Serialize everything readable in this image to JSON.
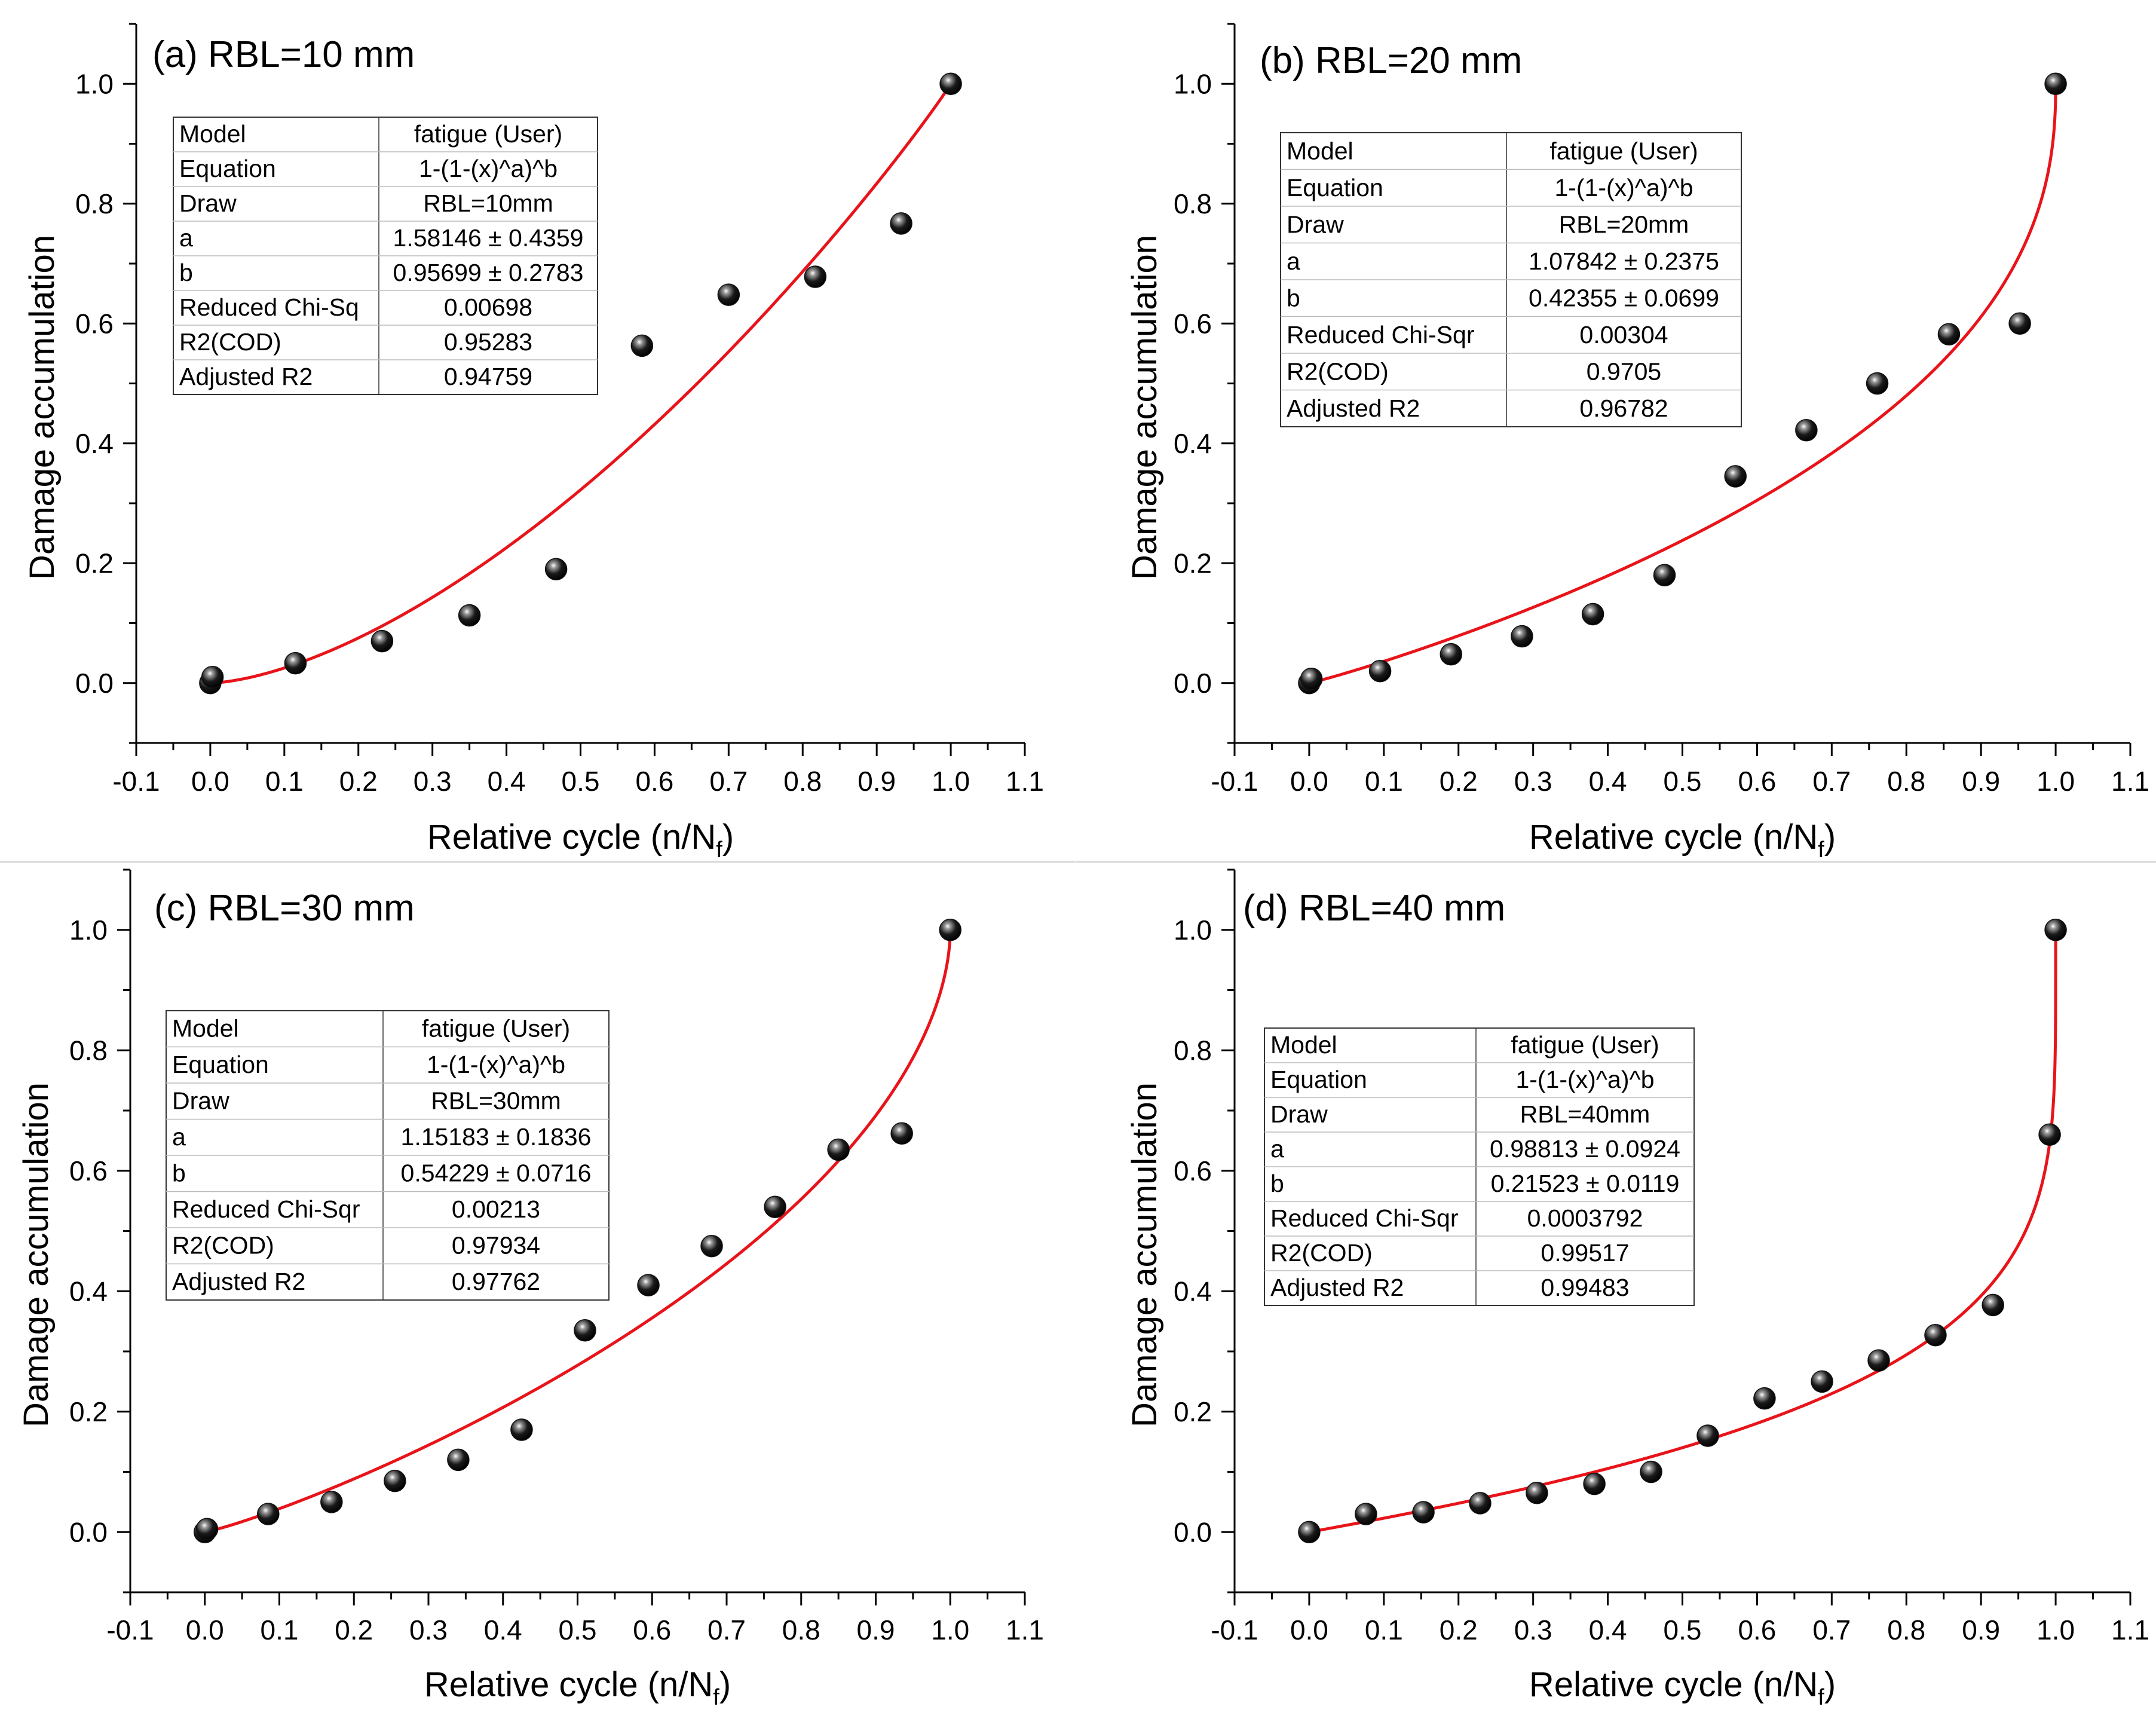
{
  "figure": {
    "xlabel": "Relative cycle (n/N",
    "xlabel_sub": "f",
    "xlabel_close": ")",
    "ylabel": "Damage accumulation",
    "colors": {
      "fit_line": "#e8141a",
      "marker": "#111111",
      "axis": "#000000"
    }
  },
  "chart_data": [
    {
      "type": "scatter",
      "title": "(a) RBL=10 mm",
      "xlim": [
        -0.1,
        1.1
      ],
      "ylim": [
        -0.1,
        1.1
      ],
      "x_ticks": [
        "-0.1",
        "0.0",
        "0.1",
        "0.2",
        "0.3",
        "0.4",
        "0.5",
        "0.6",
        "0.7",
        "0.8",
        "0.9",
        "1.0",
        "1.1"
      ],
      "y_ticks": [
        "0.0",
        "0.2",
        "0.4",
        "0.6",
        "0.8",
        "1.0"
      ],
      "points": [
        [
          0.0,
          0.0
        ],
        [
          0.003,
          0.01
        ],
        [
          0.115,
          0.033
        ],
        [
          0.232,
          0.07
        ],
        [
          0.35,
          0.113
        ],
        [
          0.467,
          0.19
        ],
        [
          0.583,
          0.563
        ],
        [
          0.7,
          0.648
        ],
        [
          0.817,
          0.678
        ],
        [
          0.933,
          0.767
        ],
        [
          1.0,
          1.0
        ]
      ],
      "fit": {
        "a": 1.58146,
        "b": 0.95699
      },
      "table": [
        [
          "Model",
          "fatigue (User)"
        ],
        [
          "Equation",
          "1-(1-(x)^a)^b"
        ],
        [
          "Draw",
          "RBL=10mm"
        ],
        [
          "a",
          "1.58146 ± 0.4359"
        ],
        [
          "b",
          "0.95699 ± 0.2783"
        ],
        [
          "Reduced Chi-Sq",
          "0.00698"
        ],
        [
          "R2(COD)",
          "0.95283"
        ],
        [
          "Adjusted R2",
          "0.94759"
        ]
      ]
    },
    {
      "type": "scatter",
      "title": "(b) RBL=20 mm",
      "xlim": [
        -0.1,
        1.1
      ],
      "ylim": [
        -0.1,
        1.1
      ],
      "x_ticks": [
        "-0.1",
        "0.0",
        "0.1",
        "0.2",
        "0.3",
        "0.4",
        "0.5",
        "0.6",
        "0.7",
        "0.8",
        "0.9",
        "1.0",
        "1.1"
      ],
      "y_ticks": [
        "0.0",
        "0.2",
        "0.4",
        "0.6",
        "0.8",
        "1.0"
      ],
      "points": [
        [
          0.0,
          0.0
        ],
        [
          0.003,
          0.007
        ],
        [
          0.095,
          0.02
        ],
        [
          0.19,
          0.048
        ],
        [
          0.285,
          0.078
        ],
        [
          0.38,
          0.115
        ],
        [
          0.476,
          0.18
        ],
        [
          0.571,
          0.345
        ],
        [
          0.666,
          0.422
        ],
        [
          0.761,
          0.5
        ],
        [
          0.857,
          0.582
        ],
        [
          0.952,
          0.6
        ],
        [
          1.0,
          1.0
        ]
      ],
      "fit": {
        "a": 1.07842,
        "b": 0.42355
      },
      "table": [
        [
          "Model",
          "fatigue (User)"
        ],
        [
          "Equation",
          "1-(1-(x)^a)^b"
        ],
        [
          "Draw",
          "RBL=20mm"
        ],
        [
          "a",
          "1.07842 ± 0.2375"
        ],
        [
          "b",
          "0.42355 ± 0.0699"
        ],
        [
          "Reduced Chi-Sqr",
          "0.00304"
        ],
        [
          "R2(COD)",
          "0.9705"
        ],
        [
          "Adjusted R2",
          "0.96782"
        ]
      ]
    },
    {
      "type": "scatter",
      "title": "(c) RBL=30 mm",
      "xlim": [
        -0.1,
        1.1
      ],
      "ylim": [
        -0.1,
        1.1
      ],
      "x_ticks": [
        "-0.1",
        "0.0",
        "0.1",
        "0.2",
        "0.3",
        "0.4",
        "0.5",
        "0.6",
        "0.7",
        "0.8",
        "0.9",
        "1.0",
        "1.1"
      ],
      "y_ticks": [
        "0.0",
        "0.2",
        "0.4",
        "0.6",
        "0.8",
        "1.0"
      ],
      "points": [
        [
          0.0,
          0.0
        ],
        [
          0.003,
          0.005
        ],
        [
          0.085,
          0.03
        ],
        [
          0.17,
          0.05
        ],
        [
          0.255,
          0.085
        ],
        [
          0.34,
          0.12
        ],
        [
          0.425,
          0.17
        ],
        [
          0.51,
          0.335
        ],
        [
          0.595,
          0.41
        ],
        [
          0.68,
          0.475
        ],
        [
          0.765,
          0.54
        ],
        [
          0.85,
          0.635
        ],
        [
          0.935,
          0.662
        ],
        [
          1.0,
          1.0
        ]
      ],
      "fit": {
        "a": 1.15183,
        "b": 0.54229
      },
      "table": [
        [
          "Model",
          "fatigue (User)"
        ],
        [
          "Equation",
          "1-(1-(x)^a)^b"
        ],
        [
          "Draw",
          "RBL=30mm"
        ],
        [
          "a",
          "1.15183 ± 0.1836"
        ],
        [
          "b",
          "0.54229 ± 0.0716"
        ],
        [
          "Reduced Chi-Sqr",
          "0.00213"
        ],
        [
          "R2(COD)",
          "0.97934"
        ],
        [
          "Adjusted R2",
          "0.97762"
        ]
      ]
    },
    {
      "type": "scatter",
      "title": "(d) RBL=40 mm",
      "xlim": [
        -0.1,
        1.1
      ],
      "ylim": [
        -0.1,
        1.1
      ],
      "x_ticks": [
        "-0.1",
        "0.0",
        "0.1",
        "0.2",
        "0.3",
        "0.4",
        "0.5",
        "0.6",
        "0.7",
        "0.8",
        "0.9",
        "1.0",
        "1.1"
      ],
      "y_ticks": [
        "0.0",
        "0.2",
        "0.4",
        "0.6",
        "0.8",
        "1.0"
      ],
      "points": [
        [
          0.0,
          0.0
        ],
        [
          0.076,
          0.03
        ],
        [
          0.153,
          0.033
        ],
        [
          0.229,
          0.048
        ],
        [
          0.305,
          0.065
        ],
        [
          0.382,
          0.08
        ],
        [
          0.458,
          0.1
        ],
        [
          0.534,
          0.16
        ],
        [
          0.61,
          0.222
        ],
        [
          0.687,
          0.25
        ],
        [
          0.763,
          0.285
        ],
        [
          0.839,
          0.327
        ],
        [
          0.916,
          0.377
        ],
        [
          0.992,
          0.66
        ],
        [
          1.0,
          1.0
        ]
      ],
      "fit": {
        "a": 0.98813,
        "b": 0.21523
      },
      "table": [
        [
          "Model",
          "fatigue (User)"
        ],
        [
          "Equation",
          "1-(1-(x)^a)^b"
        ],
        [
          "Draw",
          "RBL=40mm"
        ],
        [
          "a",
          "0.98813 ± 0.0924"
        ],
        [
          "b",
          "0.21523 ± 0.0119"
        ],
        [
          "Reduced Chi-Sqr",
          "0.0003792"
        ],
        [
          "R2(COD)",
          "0.99517"
        ],
        [
          "Adjusted R2",
          "0.99483"
        ]
      ]
    }
  ]
}
